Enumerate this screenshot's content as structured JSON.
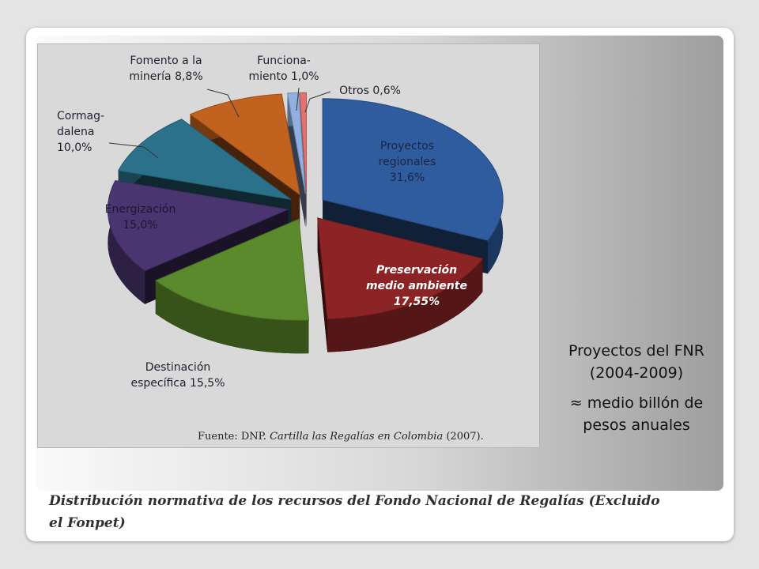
{
  "chart_data": {
    "type": "pie",
    "categories": [
      "Proyectos regionales",
      "Preservación medio ambiente",
      "Destinación específica",
      "Energización",
      "Cormag-dalena",
      "Fomento a la minería",
      "Funciona-miento",
      "Otros"
    ],
    "values": [
      31.6,
      17.55,
      15.5,
      15,
      10,
      8.8,
      1,
      0.6
    ],
    "value_labels": [
      "31,6%",
      "17,55%",
      "15,5%",
      "15,0%",
      "10,0%",
      "8,8%",
      "1,0%",
      "0,6%"
    ],
    "colors": [
      "#2f5c9e",
      "#8c2426",
      "#5b8a2c",
      "#4a3570",
      "#2b7189",
      "#c2621f",
      "#8fb0e0",
      "#e07272"
    ],
    "source": {
      "prefix": "Fuente: DNP.",
      "title": "Cartilla las Regalías en Colombia",
      "suffix": "(2007)."
    }
  },
  "side_note": {
    "title": "Proyectos del FNR (2004-2009)",
    "text": "≈ medio billón de pesos anuales"
  },
  "caption": "Distribución normativa de los recursos del Fondo Nacional de Regalías (Excluido el Fonpet)"
}
